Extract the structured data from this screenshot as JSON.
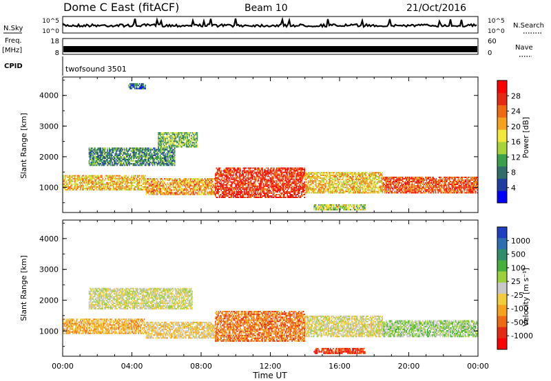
{
  "header": {
    "title": "Dome C East (fitACF)",
    "beam": "Beam 10",
    "date": "21/Oct/2016"
  },
  "top_panels": {
    "nsky_label": "N.Sky",
    "nsky_ticks": [
      "10^5",
      "10^0"
    ],
    "nsearch_label": "N.Search",
    "nsearch_ticks": [
      "10^5",
      "10^0"
    ],
    "freq_label_line1": "Freq.",
    "freq_label_line2": "[MHz]",
    "freq_ticks": [
      "18",
      "8"
    ],
    "nave_label": "Nave",
    "nave_ticks": [
      "60",
      "0"
    ],
    "cpid_label": "CPID",
    "cpid_value": "twofsound 3501"
  },
  "colorbars": {
    "power": {
      "label": "Power [dB]",
      "ticks": [
        "28",
        "24",
        "20",
        "16",
        "12",
        "8",
        "4"
      ],
      "colors": [
        "#0000ff",
        "#1e3fa0",
        "#2f6e6a",
        "#3aa04a",
        "#a8d43a",
        "#f2e83a",
        "#f5a21e",
        "#f06a14",
        "#e62a10",
        "#ff0000"
      ]
    },
    "velocity": {
      "label": "Velocity [m s⁻¹]",
      "ticks": [
        "1000",
        "500",
        "100",
        "25",
        "-25",
        "-100",
        "-500",
        "-1000"
      ],
      "colors": [
        "#1e3fc0",
        "#2b6fb0",
        "#2f8e6a",
        "#44b03c",
        "#9ad03a",
        "#c8c8c8",
        "#f2cc3a",
        "#f5a21e",
        "#f06a14",
        "#e62a10",
        "#ff0000"
      ]
    }
  },
  "chart_data": [
    {
      "type": "heatmap",
      "name": "power",
      "xlabel": "",
      "ylabel": "Slant Range [km]",
      "yticks": [
        "1000",
        "2000",
        "3000",
        "4000"
      ],
      "ylim": [
        180,
        4600
      ],
      "xlim": [
        0,
        24
      ],
      "value_range": [
        0,
        30
      ],
      "regions": [
        {
          "t0": 0.0,
          "t1": 4.8,
          "r0": 900,
          "r1": 1400,
          "value": 18
        },
        {
          "t0": 1.5,
          "t1": 6.5,
          "r0": 1700,
          "r1": 2300,
          "value": 9
        },
        {
          "t0": 5.5,
          "t1": 7.8,
          "r0": 2300,
          "r1": 2800,
          "value": 12
        },
        {
          "t0": 4.8,
          "t1": 8.8,
          "r0": 750,
          "r1": 1300,
          "value": 20
        },
        {
          "t0": 8.8,
          "t1": 14.0,
          "r0": 650,
          "r1": 1650,
          "value": 26
        },
        {
          "t0": 14.0,
          "t1": 18.5,
          "r0": 800,
          "r1": 1500,
          "value": 18
        },
        {
          "t0": 18.5,
          "t1": 24.0,
          "r0": 800,
          "r1": 1350,
          "value": 24
        },
        {
          "t0": 14.5,
          "t1": 17.5,
          "r0": 250,
          "r1": 450,
          "value": 14
        },
        {
          "t0": 3.8,
          "t1": 4.8,
          "r0": 4200,
          "r1": 4400,
          "value": 6
        }
      ]
    },
    {
      "type": "heatmap",
      "name": "velocity",
      "xlabel": "Time UT",
      "ylabel": "Slant Range [km]",
      "xticks": [
        "00:00",
        "04:00",
        "08:00",
        "12:00",
        "16:00",
        "20:00",
        "00:00"
      ],
      "yticks": [
        "1000",
        "2000",
        "3000",
        "4000"
      ],
      "ylim": [
        180,
        4600
      ],
      "xlim": [
        0,
        24
      ],
      "value_range": [
        -1000,
        1000
      ],
      "regions": [
        {
          "t0": 0.0,
          "t1": 4.8,
          "r0": 900,
          "r1": 1400,
          "value": -300
        },
        {
          "t0": 1.5,
          "t1": 7.5,
          "r0": 1700,
          "r1": 2400,
          "value": 0
        },
        {
          "t0": 4.8,
          "t1": 8.8,
          "r0": 750,
          "r1": 1300,
          "value": -150
        },
        {
          "t0": 8.8,
          "t1": 14.0,
          "r0": 650,
          "r1": 1650,
          "value": -500
        },
        {
          "t0": 14.0,
          "t1": 18.5,
          "r0": 800,
          "r1": 1500,
          "value": -50
        },
        {
          "t0": 18.5,
          "t1": 24.0,
          "r0": 800,
          "r1": 1350,
          "value": 150
        },
        {
          "t0": 14.5,
          "t1": 17.5,
          "r0": 250,
          "r1": 450,
          "value": -700
        }
      ]
    }
  ]
}
